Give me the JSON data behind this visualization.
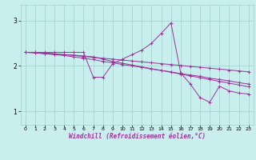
{
  "title": "",
  "xlabel": "Windchill (Refroidissement éolien,°C)",
  "ylabel": "",
  "background_color": "#c8eeed",
  "grid_color": "#a0d0d0",
  "line_color": "#993399",
  "xlim": [
    -0.5,
    23.5
  ],
  "ylim": [
    0.7,
    3.35
  ],
  "xticks": [
    0,
    1,
    2,
    3,
    4,
    5,
    6,
    7,
    8,
    9,
    10,
    11,
    12,
    13,
    14,
    15,
    16,
    17,
    18,
    19,
    20,
    21,
    22,
    23
  ],
  "yticks": [
    1,
    2,
    3
  ],
  "series": [
    [
      2.3,
      2.3,
      2.3,
      2.3,
      2.3,
      2.3,
      2.3,
      1.75,
      1.75,
      2.05,
      2.15,
      2.25,
      2.35,
      2.5,
      2.72,
      2.95,
      1.85,
      1.6,
      1.3,
      1.2,
      1.55,
      1.45,
      1.4,
      1.38
    ],
    [
      2.3,
      2.29,
      2.27,
      2.26,
      2.25,
      2.24,
      2.22,
      2.2,
      2.15,
      2.1,
      2.06,
      2.02,
      1.98,
      1.94,
      1.9,
      1.86,
      1.82,
      1.78,
      1.74,
      1.7,
      1.66,
      1.62,
      1.58,
      1.54
    ],
    [
      2.3,
      2.3,
      2.29,
      2.27,
      2.25,
      2.23,
      2.21,
      2.19,
      2.17,
      2.15,
      2.13,
      2.11,
      2.09,
      2.07,
      2.05,
      2.03,
      2.01,
      1.99,
      1.97,
      1.95,
      1.93,
      1.91,
      1.89,
      1.87
    ],
    [
      2.3,
      2.29,
      2.27,
      2.25,
      2.23,
      2.2,
      2.17,
      2.14,
      2.1,
      2.07,
      2.03,
      2.0,
      1.97,
      1.93,
      1.9,
      1.87,
      1.83,
      1.8,
      1.77,
      1.73,
      1.7,
      1.67,
      1.63,
      1.6
    ]
  ]
}
